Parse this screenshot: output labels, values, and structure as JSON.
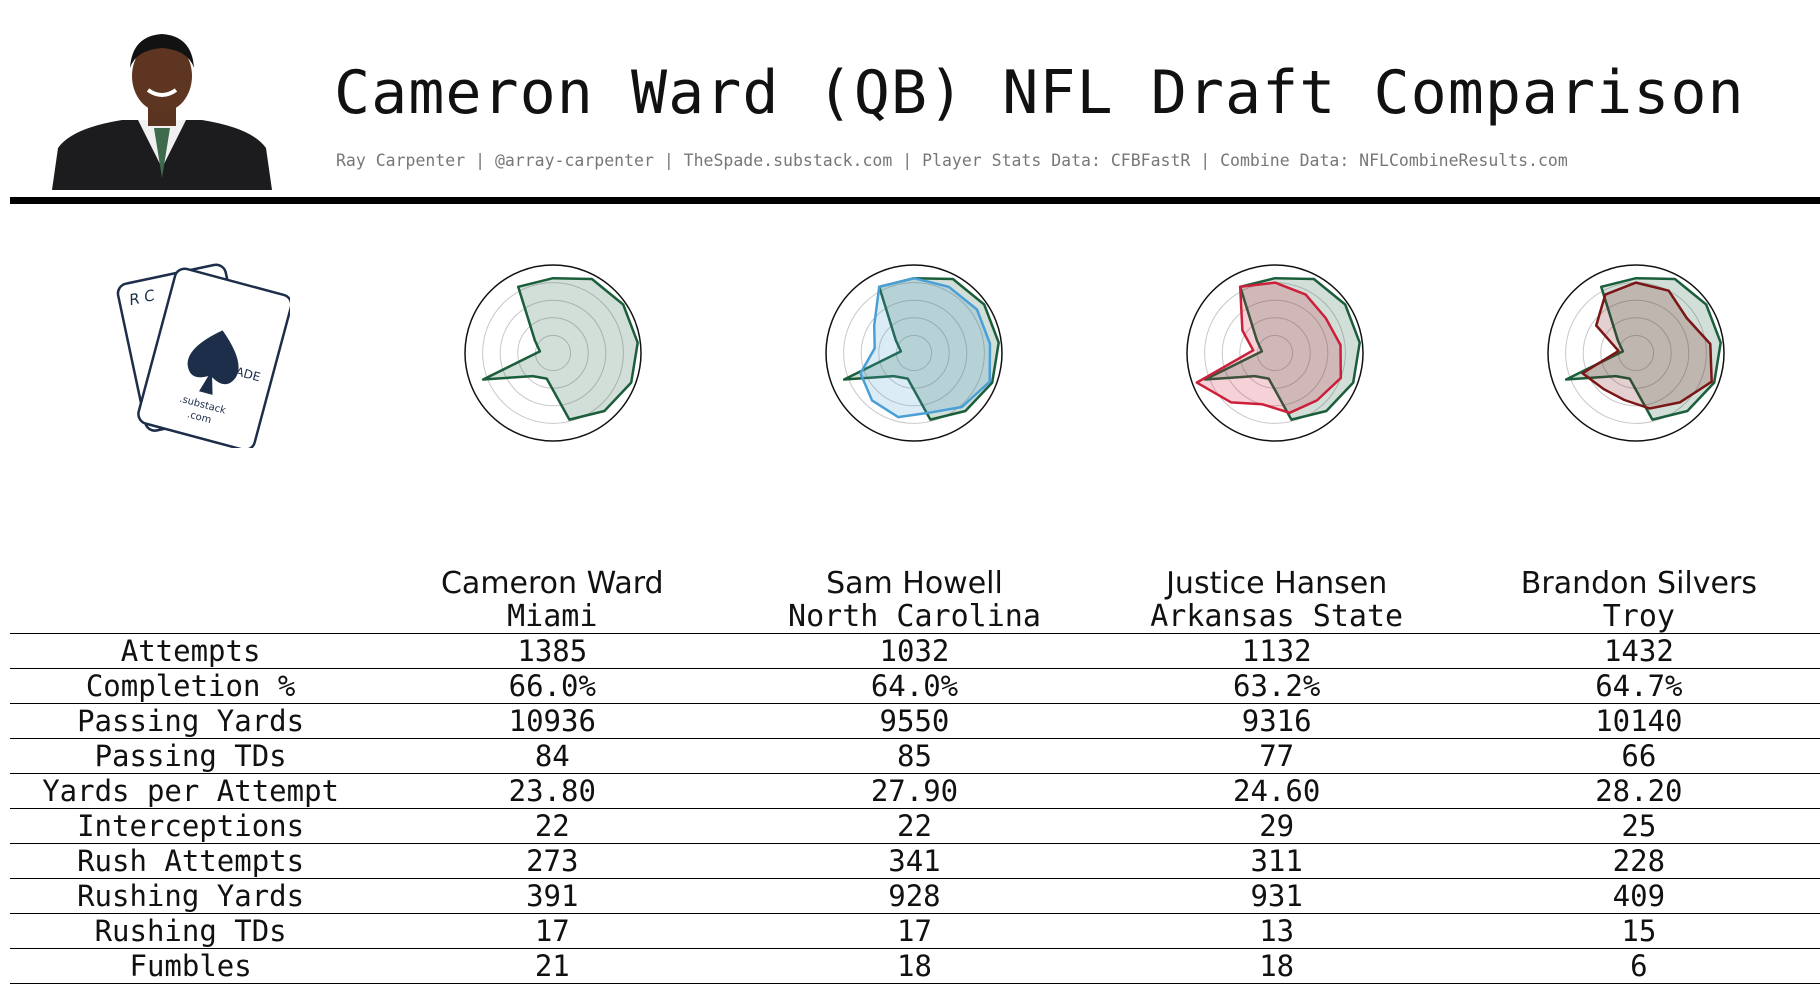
{
  "header": {
    "title": "Cameron Ward (QB) NFL Draft Comparison",
    "subtitle": "Ray Carpenter | @array-carpenter | TheSpade.substack.com | Player Stats Data: CFBFastR | Combine Data: NFLCombineResults.com"
  },
  "logo": {
    "letters_back": "R C",
    "letters_front": "THE SPADE",
    "subtext_1": ".substack",
    "subtext_2": ".com"
  },
  "colors": {
    "base": "#1b5e3b",
    "Sam Howell": "#4a9fd6",
    "Justice Hansen": "#cc1f3a",
    "Brandon Silvers": "#7a1616"
  },
  "players": [
    {
      "name": "Cameron Ward",
      "school": "Miami"
    },
    {
      "name": "Sam Howell",
      "school": "North Carolina"
    },
    {
      "name": "Justice Hansen",
      "school": "Arkansas State"
    },
    {
      "name": "Brandon Silvers",
      "school": "Troy"
    }
  ],
  "table": {
    "rows": [
      {
        "label": "Attempts",
        "values": [
          "1385",
          "1032",
          "1132",
          "1432"
        ]
      },
      {
        "label": "Completion %",
        "values": [
          "66.0%",
          "64.0%",
          "63.2%",
          "64.7%"
        ]
      },
      {
        "label": "Passing Yards",
        "values": [
          "10936",
          "9550",
          "9316",
          "10140"
        ]
      },
      {
        "label": "Passing TDs",
        "values": [
          "84",
          "85",
          "77",
          "66"
        ]
      },
      {
        "label": "Yards per Attempt",
        "values": [
          "23.80",
          "27.90",
          "24.60",
          "28.20"
        ]
      },
      {
        "label": "Interceptions",
        "values": [
          "22",
          "22",
          "29",
          "25"
        ]
      },
      {
        "label": "Rush Attempts",
        "values": [
          "273",
          "341",
          "311",
          "228"
        ]
      },
      {
        "label": "Rushing Yards",
        "values": [
          "391",
          "928",
          "931",
          "409"
        ]
      },
      {
        "label": "Rushing TDs",
        "values": [
          "17",
          "17",
          "13",
          "15"
        ]
      },
      {
        "label": "Fumbles",
        "values": [
          "21",
          "18",
          "18",
          "6"
        ]
      }
    ]
  },
  "chart_data": [
    {
      "type": "radar",
      "title": "",
      "series": [
        {
          "name": "Cameron Ward",
          "values": [
            0.85,
            0.95,
            0.97,
            0.97,
            0.95,
            0.88,
            0.78,
            0.3,
            0.35,
            0.85,
            0.15,
            0.25,
            0.85
          ]
        }
      ],
      "range": [
        0,
        1
      ]
    },
    {
      "type": "radar",
      "title": "",
      "series": [
        {
          "name": "Cameron Ward",
          "values": [
            0.85,
            0.95,
            0.97,
            0.97,
            0.95,
            0.88,
            0.78,
            0.3,
            0.35,
            0.85,
            0.15,
            0.25,
            0.85
          ]
        },
        {
          "name": "Sam Howell",
          "values": [
            0.85,
            0.85,
            0.87,
            0.87,
            0.92,
            0.82,
            0.7,
            0.75,
            0.72,
            0.65,
            0.45,
            0.55,
            0.85
          ]
        }
      ],
      "range": [
        0,
        1
      ]
    },
    {
      "type": "radar",
      "title": "",
      "series": [
        {
          "name": "Cameron Ward",
          "values": [
            0.85,
            0.95,
            0.97,
            0.97,
            0.95,
            0.88,
            0.78,
            0.3,
            0.35,
            0.85,
            0.15,
            0.25,
            0.85
          ]
        },
        {
          "name": "Justice Hansen",
          "values": [
            0.8,
            0.75,
            0.7,
            0.75,
            0.8,
            0.72,
            0.7,
            0.6,
            0.75,
            0.95,
            0.25,
            0.45,
            0.85
          ]
        }
      ],
      "range": [
        0,
        1
      ]
    },
    {
      "type": "radar",
      "title": "",
      "series": [
        {
          "name": "Cameron Ward",
          "values": [
            0.85,
            0.95,
            0.97,
            0.97,
            0.95,
            0.88,
            0.78,
            0.3,
            0.35,
            0.85,
            0.15,
            0.25,
            0.85
          ]
        },
        {
          "name": "Brandon Silvers",
          "values": [
            0.8,
            0.8,
            0.7,
            0.85,
            0.92,
            0.75,
            0.65,
            0.55,
            0.55,
            0.65,
            0.2,
            0.55,
            0.75
          ]
        }
      ],
      "range": [
        0,
        1
      ]
    }
  ]
}
